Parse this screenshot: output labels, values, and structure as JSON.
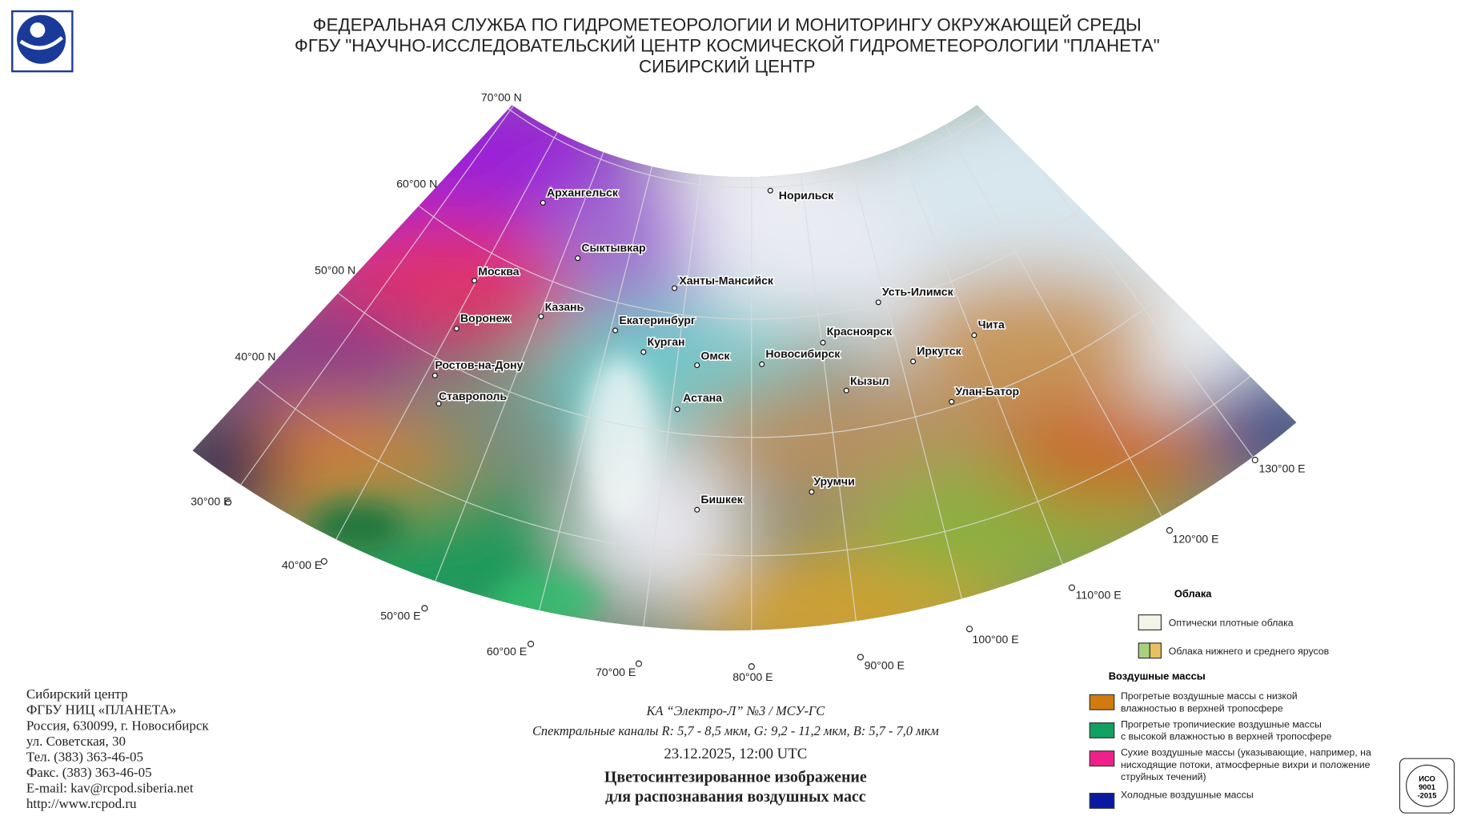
{
  "header": {
    "lines": [
      "ФЕДЕРАЛЬНАЯ СЛУЖБА ПО ГИДРОМЕТЕОРОЛОГИИ И МОНИТОРИНГУ ОКРУЖАЮЩЕЙ СРЕДЫ",
      "ФГБУ \"НАУЧНО-ИССЛЕДОВАТЕЛЬСКИЙ ЦЕНТР КОСМИЧЕСКОЙ ГИДРОМЕТЕОРОЛОГИИ \"ПЛАНЕТА\"",
      "СИБИРСКИЙ ЦЕНТР"
    ]
  },
  "map": {
    "latitudes": [
      "70°00 N",
      "60°00 N",
      "50°00 N",
      "40°00 N"
    ],
    "longitudes": [
      "30°00 E",
      "40°00 E",
      "50°00 E",
      "60°00 E",
      "70°00 E",
      "80°00 E",
      "90°00 E",
      "100°00 E",
      "110°00 E",
      "120°00 E",
      "130°00 E"
    ],
    "cities": [
      "Архангельск",
      "Сыктывкар",
      "Москва",
      "Казань",
      "Воронеж",
      "Ханты-Мансийск",
      "Екатеринбург",
      "Курган",
      "Омск",
      "Новосибирск",
      "Норильск",
      "Усть-Илимск",
      "Красноярск",
      "Чита",
      "Иркутск",
      "Кызыл",
      "Улан-Батор",
      "Ростов-на-Дону",
      "Ставрополь",
      "Астана",
      "Бишкек",
      "Урумчи"
    ]
  },
  "legend": {
    "clouds_title": "Облака",
    "clouds": [
      {
        "label": "Оптически плотные облака",
        "color": "#f4f4ea"
      },
      {
        "label": "Облака нижнего и среднего ярусов",
        "color": "#a8d080"
      }
    ],
    "air_title": "Воздушные массы",
    "air": [
      {
        "label": "Прогретые воздушные массы с низкой\nвлажностью в верхней тропосфере",
        "color": "#d07a10"
      },
      {
        "label": "Прогретые тропичиеские воздушные массы\nс высокой влажностью в верхней тропосфере",
        "color": "#12a060"
      },
      {
        "label": "Сухие воздушные массы (указывающие, например, на\nнисходящие потоки, атмосферные вихри и положение\nструйных течений)",
        "color": "#f0208a"
      },
      {
        "label": "Холодные воздушные массы",
        "color": "#0a1aa0"
      }
    ]
  },
  "caption": {
    "satellite": "КА “Электро-Л” №3 / МСУ-ГС",
    "channels": "Спектральные каналы R: 5,7 - 8,5 мкм, G: 9,2 - 11,2 мкм, B: 5,7 - 7,0 мкм",
    "datetime": "23.12.2025, 12:00 UTC",
    "title": [
      "Цветосинтезированное изображение",
      "для распознавания воздушных масс"
    ]
  },
  "contact": [
    "Сибирский центр",
    "ФГБУ НИЦ «ПЛАНЕТА»",
    "Россия, 630099, г. Новосибирск",
    "ул. Советская, 30",
    "Тел. (383) 363-46-05",
    "Факс. (383) 363-46-05",
    "E-mail: kav@rcpod.siberia.net",
    "http://www.rcpod.ru"
  ],
  "badge": [
    "ИСО",
    "9001",
    "-2015"
  ]
}
